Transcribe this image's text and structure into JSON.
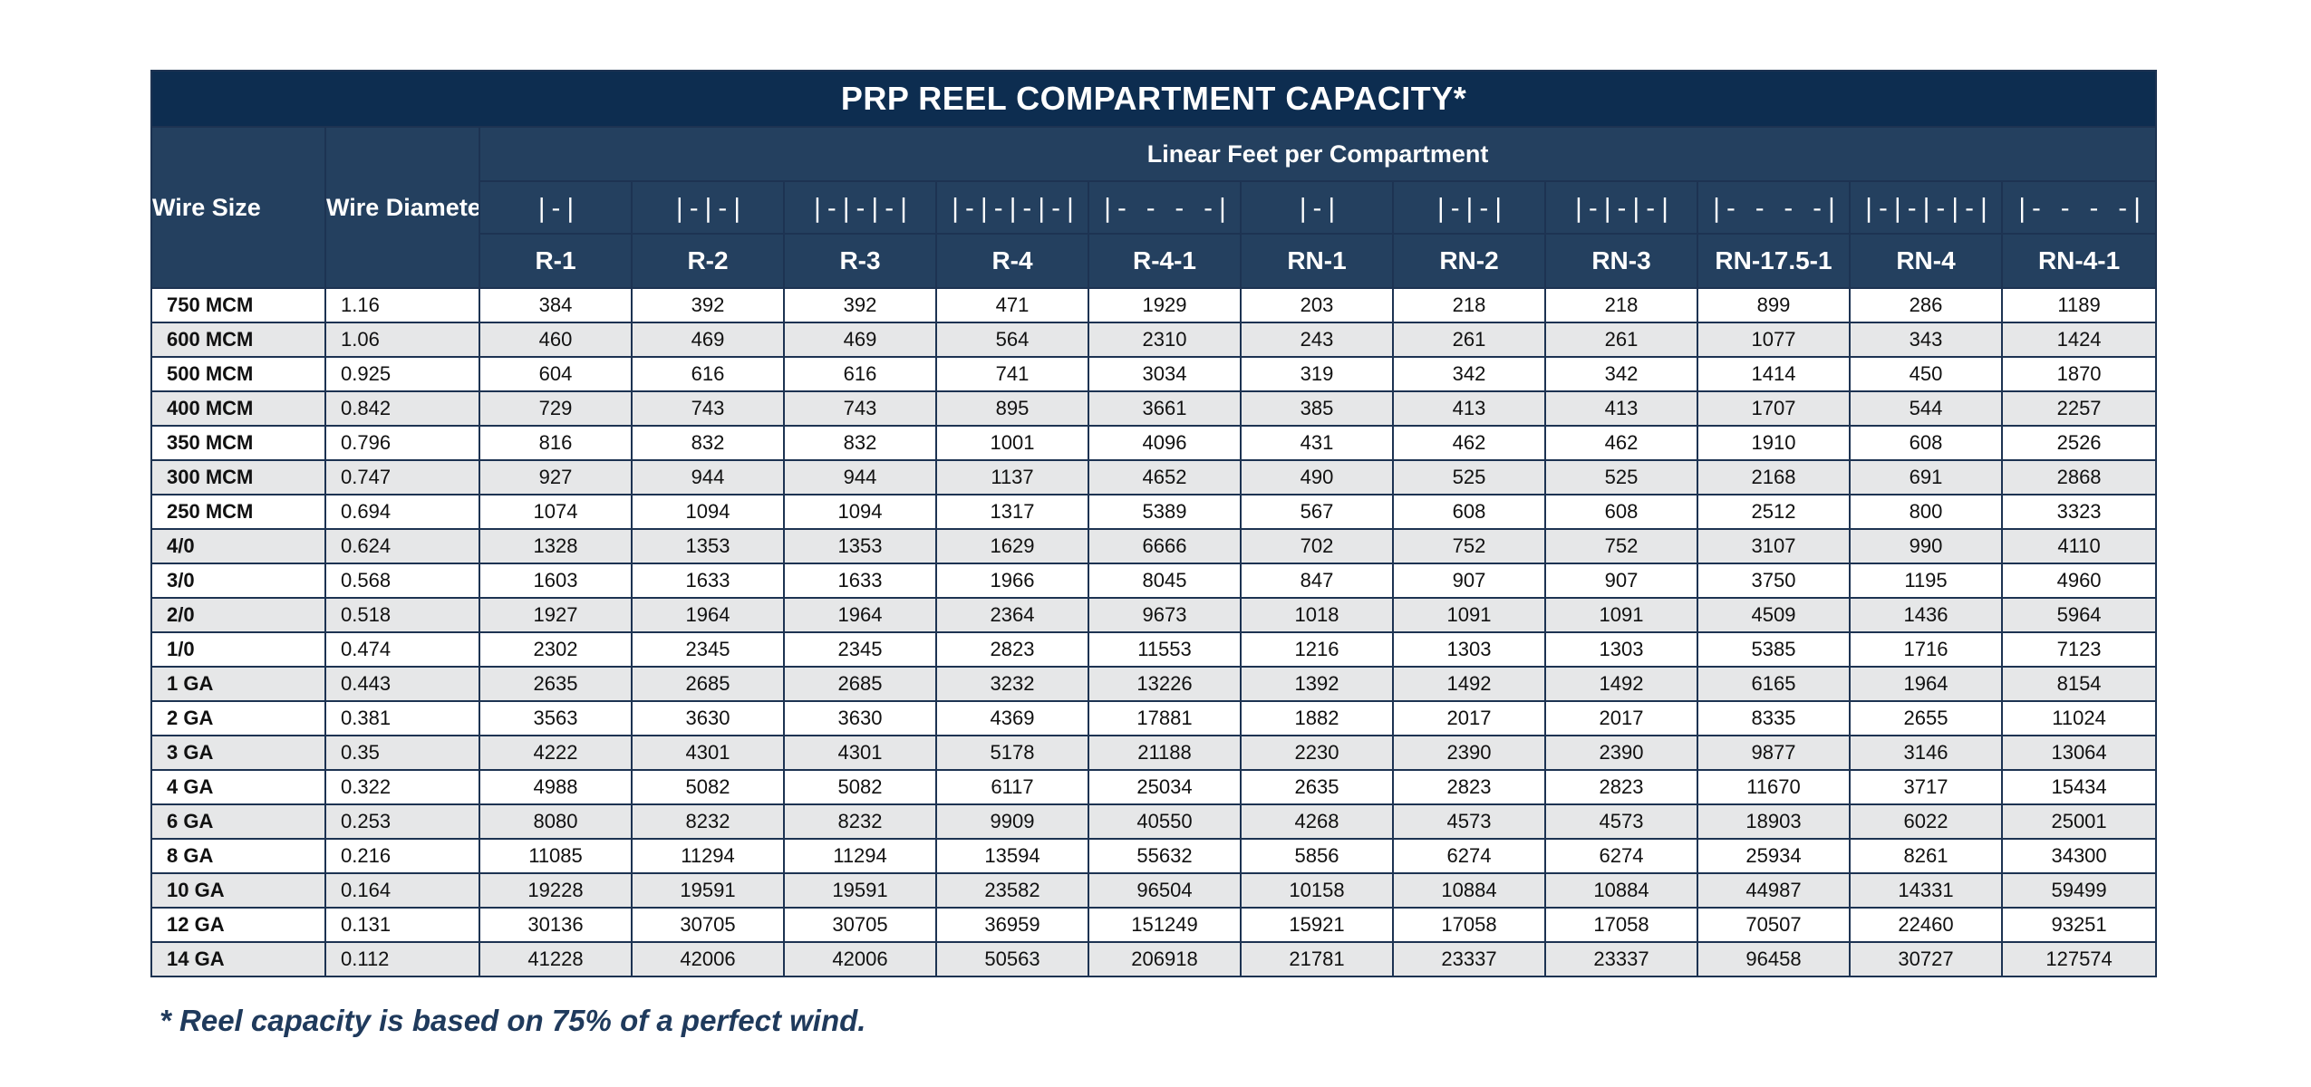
{
  "title": "PRP REEL COMPARTMENT CAPACITY*",
  "headers": {
    "wire_size": "Wire Size",
    "wire_diameter": "Wire Diameter (inches)",
    "linear_feet": "Linear Feet per Compartment"
  },
  "columns": [
    {
      "symbol": "|-|",
      "code": "R-1"
    },
    {
      "symbol": "|-|-|",
      "code": "R-2"
    },
    {
      "symbol": "|-|-|-|",
      "code": "R-3"
    },
    {
      "symbol": "|-|-|-|-|",
      "code": "R-4"
    },
    {
      "symbol": "|- - - -|",
      "code": "R-4-1"
    },
    {
      "symbol": "|-|",
      "code": "RN-1"
    },
    {
      "symbol": "|-|-|",
      "code": "RN-2"
    },
    {
      "symbol": "|-|-|-|",
      "code": "RN-3"
    },
    {
      "symbol": "|- - - -|",
      "code": "RN-17.5-1"
    },
    {
      "symbol": "|-|-|-|-|",
      "code": "RN-4"
    },
    {
      "symbol": "|- - - -|",
      "code": "RN-4-1"
    }
  ],
  "rows": [
    {
      "size": "750 MCM",
      "diameter": "1.16",
      "values": [
        "384",
        "392",
        "392",
        "471",
        "1929",
        "203",
        "218",
        "218",
        "899",
        "286",
        "1189"
      ]
    },
    {
      "size": "600 MCM",
      "diameter": "1.06",
      "values": [
        "460",
        "469",
        "469",
        "564",
        "2310",
        "243",
        "261",
        "261",
        "1077",
        "343",
        "1424"
      ]
    },
    {
      "size": "500 MCM",
      "diameter": "0.925",
      "values": [
        "604",
        "616",
        "616",
        "741",
        "3034",
        "319",
        "342",
        "342",
        "1414",
        "450",
        "1870"
      ]
    },
    {
      "size": "400 MCM",
      "diameter": "0.842",
      "values": [
        "729",
        "743",
        "743",
        "895",
        "3661",
        "385",
        "413",
        "413",
        "1707",
        "544",
        "2257"
      ]
    },
    {
      "size": "350 MCM",
      "diameter": "0.796",
      "values": [
        "816",
        "832",
        "832",
        "1001",
        "4096",
        "431",
        "462",
        "462",
        "1910",
        "608",
        "2526"
      ]
    },
    {
      "size": "300 MCM",
      "diameter": "0.747",
      "values": [
        "927",
        "944",
        "944",
        "1137",
        "4652",
        "490",
        "525",
        "525",
        "2168",
        "691",
        "2868"
      ]
    },
    {
      "size": "250 MCM",
      "diameter": "0.694",
      "values": [
        "1074",
        "1094",
        "1094",
        "1317",
        "5389",
        "567",
        "608",
        "608",
        "2512",
        "800",
        "3323"
      ]
    },
    {
      "size": "4/0",
      "diameter": "0.624",
      "values": [
        "1328",
        "1353",
        "1353",
        "1629",
        "6666",
        "702",
        "752",
        "752",
        "3107",
        "990",
        "4110"
      ]
    },
    {
      "size": "3/0",
      "diameter": "0.568",
      "values": [
        "1603",
        "1633",
        "1633",
        "1966",
        "8045",
        "847",
        "907",
        "907",
        "3750",
        "1195",
        "4960"
      ]
    },
    {
      "size": "2/0",
      "diameter": "0.518",
      "values": [
        "1927",
        "1964",
        "1964",
        "2364",
        "9673",
        "1018",
        "1091",
        "1091",
        "4509",
        "1436",
        "5964"
      ]
    },
    {
      "size": "1/0",
      "diameter": "0.474",
      "values": [
        "2302",
        "2345",
        "2345",
        "2823",
        "11553",
        "1216",
        "1303",
        "1303",
        "5385",
        "1716",
        "7123"
      ]
    },
    {
      "size": "1 GA",
      "diameter": "0.443",
      "values": [
        "2635",
        "2685",
        "2685",
        "3232",
        "13226",
        "1392",
        "1492",
        "1492",
        "6165",
        "1964",
        "8154"
      ]
    },
    {
      "size": "2 GA",
      "diameter": "0.381",
      "values": [
        "3563",
        "3630",
        "3630",
        "4369",
        "17881",
        "1882",
        "2017",
        "2017",
        "8335",
        "2655",
        "11024"
      ]
    },
    {
      "size": "3 GA",
      "diameter": "0.35",
      "values": [
        "4222",
        "4301",
        "4301",
        "5178",
        "21188",
        "2230",
        "2390",
        "2390",
        "9877",
        "3146",
        "13064"
      ]
    },
    {
      "size": "4 GA",
      "diameter": "0.322",
      "values": [
        "4988",
        "5082",
        "5082",
        "6117",
        "25034",
        "2635",
        "2823",
        "2823",
        "11670",
        "3717",
        "15434"
      ]
    },
    {
      "size": "6 GA",
      "diameter": "0.253",
      "values": [
        "8080",
        "8232",
        "8232",
        "9909",
        "40550",
        "4268",
        "4573",
        "4573",
        "18903",
        "6022",
        "25001"
      ]
    },
    {
      "size": "8 GA",
      "diameter": "0.216",
      "values": [
        "11085",
        "11294",
        "11294",
        "13594",
        "55632",
        "5856",
        "6274",
        "6274",
        "25934",
        "8261",
        "34300"
      ]
    },
    {
      "size": "10 GA",
      "diameter": "0.164",
      "values": [
        "19228",
        "19591",
        "19591",
        "23582",
        "96504",
        "10158",
        "10884",
        "10884",
        "44987",
        "14331",
        "59499"
      ]
    },
    {
      "size": "12 GA",
      "diameter": "0.131",
      "values": [
        "30136",
        "30705",
        "30705",
        "36959",
        "151249",
        "15921",
        "17058",
        "17058",
        "70507",
        "22460",
        "93251"
      ]
    },
    {
      "size": "14 GA",
      "diameter": "0.112",
      "values": [
        "41228",
        "42006",
        "42006",
        "50563",
        "206918",
        "21781",
        "23337",
        "23337",
        "96458",
        "30727",
        "127574"
      ]
    }
  ],
  "footnote": "* Reel capacity is based on 75% of a perfect wind."
}
